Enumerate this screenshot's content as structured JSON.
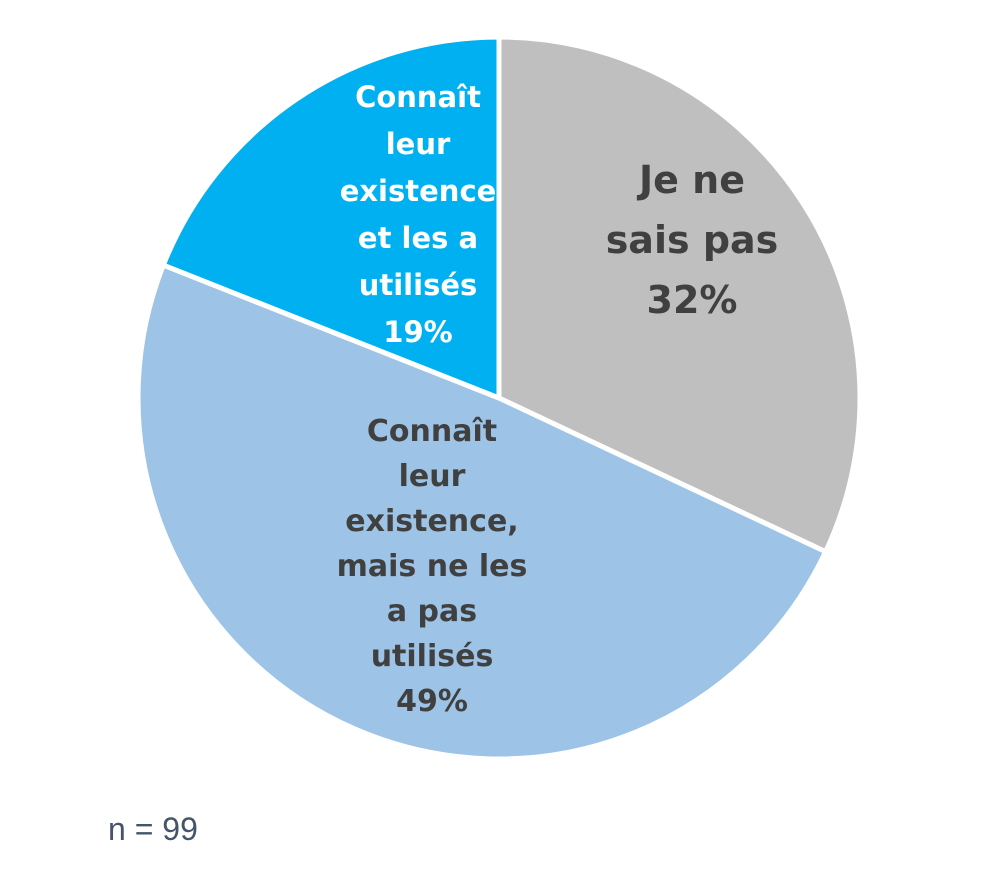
{
  "chart_data": {
    "type": "pie",
    "start": "12 o'clock",
    "direction": "clockwise",
    "slices": [
      {
        "label_lines": [
          "Je ne",
          "sais pas"
        ],
        "value": 32,
        "value_label": "32%",
        "color": "#bfbfbf",
        "text_color": "#404040"
      },
      {
        "label_lines": [
          "Connaît",
          "leur",
          "existence,",
          "mais ne les",
          "a pas",
          "utilisés"
        ],
        "value": 49,
        "value_label": "49%",
        "color": "#9dc3e6",
        "text_color": "#404040"
      },
      {
        "label_lines": [
          "Connaît",
          "leur",
          "existence",
          "et les a",
          "utilisés"
        ],
        "value": 19,
        "value_label": "19%",
        "color": "#00b0f0",
        "text_color": "#ffffff"
      }
    ]
  },
  "note": "n = 99"
}
